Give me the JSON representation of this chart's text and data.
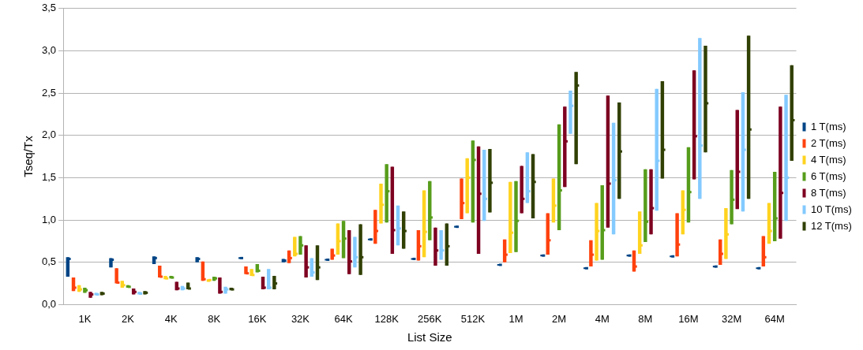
{
  "chart_data": {
    "type": "box",
    "xlabel": "List Size",
    "ylabel": "Tseq/Tx",
    "categories": [
      "1K",
      "2K",
      "4K",
      "8K",
      "16K",
      "32K",
      "64K",
      "128K",
      "256K",
      "512K",
      "1M",
      "2M",
      "4M",
      "8M",
      "16M",
      "32M",
      "64M"
    ],
    "ylim": [
      0,
      3.5
    ],
    "yticks": [
      {
        "value": 0,
        "label": "0,0"
      },
      {
        "value": 0.5,
        "label": "0,5"
      },
      {
        "value": 1,
        "label": "1,0"
      },
      {
        "value": 1.5,
        "label": "1,5"
      },
      {
        "value": 2,
        "label": "2,0"
      },
      {
        "value": 2.5,
        "label": "2,5"
      },
      {
        "value": 3,
        "label": "3,0"
      },
      {
        "value": 3.5,
        "label": "3,5"
      }
    ],
    "grid": "y",
    "legend": "right",
    "series": [
      {
        "name": "1 T(ms)",
        "color": "#004586",
        "boxes": [
          {
            "low": 0.33,
            "q1": 0.33,
            "median": 0.54,
            "q3": 0.56,
            "high": 0.56
          },
          {
            "low": 0.44,
            "q1": 0.44,
            "median": 0.53,
            "q3": 0.55,
            "high": 0.55
          },
          {
            "low": 0.48,
            "q1": 0.48,
            "median": 0.55,
            "q3": 0.57,
            "high": 0.57
          },
          {
            "low": 0.5,
            "q1": 0.5,
            "median": 0.54,
            "q3": 0.56,
            "high": 0.56
          },
          {
            "low": 0.54,
            "q1": 0.54,
            "median": 0.55,
            "q3": 0.56,
            "high": 0.56
          },
          {
            "low": 0.5,
            "q1": 0.5,
            "median": 0.52,
            "q3": 0.54,
            "high": 0.54
          },
          {
            "low": 0.52,
            "q1": 0.52,
            "median": 0.53,
            "q3": 0.54,
            "high": 0.54
          },
          {
            "low": 0.76,
            "q1": 0.76,
            "median": 0.77,
            "q3": 0.78,
            "high": 0.78
          },
          {
            "low": 0.53,
            "q1": 0.53,
            "median": 0.54,
            "q3": 0.55,
            "high": 0.55
          },
          {
            "low": 0.91,
            "q1": 0.91,
            "median": 0.92,
            "q3": 0.93,
            "high": 0.93
          },
          {
            "low": 0.46,
            "q1": 0.46,
            "median": 0.47,
            "q3": 0.48,
            "high": 0.48
          },
          {
            "low": 0.57,
            "q1": 0.57,
            "median": 0.58,
            "q3": 0.59,
            "high": 0.59
          },
          {
            "low": 0.42,
            "q1": 0.42,
            "median": 0.43,
            "q3": 0.44,
            "high": 0.44
          },
          {
            "low": 0.57,
            "q1": 0.57,
            "median": 0.58,
            "q3": 0.59,
            "high": 0.59
          },
          {
            "low": 0.56,
            "q1": 0.56,
            "median": 0.57,
            "q3": 0.58,
            "high": 0.58
          },
          {
            "low": 0.44,
            "q1": 0.44,
            "median": 0.45,
            "q3": 0.46,
            "high": 0.46
          },
          {
            "low": 0.42,
            "q1": 0.42,
            "median": 0.43,
            "q3": 0.44,
            "high": 0.44
          }
        ]
      },
      {
        "name": "2 T(ms)",
        "color": "#ff420e",
        "boxes": [
          {
            "low": 0.16,
            "q1": 0.16,
            "median": 0.2,
            "q3": 0.32,
            "high": 0.32
          },
          {
            "low": 0.25,
            "q1": 0.25,
            "median": 0.26,
            "q3": 0.43,
            "high": 0.43
          },
          {
            "low": 0.32,
            "q1": 0.32,
            "median": 0.33,
            "q3": 0.46,
            "high": 0.46
          },
          {
            "low": 0.28,
            "q1": 0.28,
            "median": 0.3,
            "q3": 0.51,
            "high": 0.51
          },
          {
            "low": 0.36,
            "q1": 0.36,
            "median": 0.37,
            "q3": 0.45,
            "high": 0.45
          },
          {
            "low": 0.49,
            "q1": 0.49,
            "median": 0.55,
            "q3": 0.64,
            "high": 0.64
          },
          {
            "low": 0.53,
            "q1": 0.53,
            "median": 0.58,
            "q3": 0.66,
            "high": 0.66
          },
          {
            "low": 0.72,
            "q1": 0.72,
            "median": 0.87,
            "q3": 1.12,
            "high": 1.12
          },
          {
            "low": 0.52,
            "q1": 0.52,
            "median": 0.69,
            "q3": 0.88,
            "high": 0.88
          },
          {
            "low": 1.01,
            "q1": 1.01,
            "median": 1.2,
            "q3": 1.49,
            "high": 1.49
          },
          {
            "low": 0.5,
            "q1": 0.5,
            "median": 0.59,
            "q3": 0.77,
            "high": 0.77
          },
          {
            "low": 0.59,
            "q1": 0.59,
            "median": 0.76,
            "q3": 1.08,
            "high": 1.08
          },
          {
            "low": 0.45,
            "q1": 0.45,
            "median": 0.59,
            "q3": 0.76,
            "high": 0.76
          },
          {
            "low": 0.39,
            "q1": 0.39,
            "median": 0.45,
            "q3": 0.64,
            "high": 0.64
          },
          {
            "low": 0.57,
            "q1": 0.57,
            "median": 0.71,
            "q3": 1.08,
            "high": 1.08
          },
          {
            "low": 0.47,
            "q1": 0.47,
            "median": 0.6,
            "q3": 0.77,
            "high": 0.77
          },
          {
            "low": 0.45,
            "q1": 0.45,
            "median": 0.56,
            "q3": 0.81,
            "high": 0.81
          }
        ]
      },
      {
        "name": "4 T(ms)",
        "color": "#ffd320",
        "boxes": [
          {
            "low": 0.15,
            "q1": 0.15,
            "median": 0.18,
            "q3": 0.23,
            "high": 0.23
          },
          {
            "low": 0.2,
            "q1": 0.2,
            "median": 0.23,
            "q3": 0.28,
            "high": 0.28
          },
          {
            "low": 0.3,
            "q1": 0.3,
            "median": 0.31,
            "q3": 0.34,
            "high": 0.34
          },
          {
            "low": 0.27,
            "q1": 0.27,
            "median": 0.29,
            "q3": 0.3,
            "high": 0.3
          },
          {
            "low": 0.34,
            "q1": 0.34,
            "median": 0.35,
            "q3": 0.42,
            "high": 0.42
          },
          {
            "low": 0.57,
            "q1": 0.57,
            "median": 0.6,
            "q3": 0.8,
            "high": 0.8
          },
          {
            "low": 0.59,
            "q1": 0.59,
            "median": 0.75,
            "q3": 0.96,
            "high": 0.96
          },
          {
            "low": 0.96,
            "q1": 0.96,
            "median": 1.18,
            "q3": 1.43,
            "high": 1.43
          },
          {
            "low": 0.56,
            "q1": 0.56,
            "median": 0.86,
            "q3": 1.35,
            "high": 1.35
          },
          {
            "low": 1.08,
            "q1": 1.08,
            "median": 1.5,
            "q3": 1.73,
            "high": 1.73
          },
          {
            "low": 0.61,
            "q1": 0.61,
            "median": 0.85,
            "q3": 1.45,
            "high": 1.45
          },
          {
            "low": 0.97,
            "q1": 0.97,
            "median": 1.17,
            "q3": 1.49,
            "high": 1.49
          },
          {
            "low": 0.52,
            "q1": 0.52,
            "median": 0.87,
            "q3": 1.2,
            "high": 1.2
          },
          {
            "low": 0.6,
            "q1": 0.6,
            "median": 0.7,
            "q3": 1.1,
            "high": 1.1
          },
          {
            "low": 0.83,
            "q1": 0.83,
            "median": 1.12,
            "q3": 1.35,
            "high": 1.35
          },
          {
            "low": 0.54,
            "q1": 0.54,
            "median": 0.83,
            "q3": 1.14,
            "high": 1.14
          },
          {
            "low": 0.72,
            "q1": 0.72,
            "median": 0.87,
            "q3": 1.2,
            "high": 1.2
          }
        ]
      },
      {
        "name": "6 T(ms)",
        "color": "#579d1c",
        "boxes": [
          {
            "low": 0.14,
            "q1": 0.14,
            "median": 0.17,
            "q3": 0.2,
            "high": 0.2
          },
          {
            "low": 0.2,
            "q1": 0.2,
            "median": 0.21,
            "q3": 0.23,
            "high": 0.23
          },
          {
            "low": 0.31,
            "q1": 0.31,
            "median": 0.32,
            "q3": 0.34,
            "high": 0.34
          },
          {
            "low": 0.28,
            "q1": 0.28,
            "median": 0.31,
            "q3": 0.33,
            "high": 0.33
          },
          {
            "low": 0.38,
            "q1": 0.38,
            "median": 0.4,
            "q3": 0.48,
            "high": 0.48
          },
          {
            "low": 0.59,
            "q1": 0.59,
            "median": 0.7,
            "q3": 0.81,
            "high": 0.81
          },
          {
            "low": 0.55,
            "q1": 0.55,
            "median": 0.78,
            "q3": 0.99,
            "high": 0.99
          },
          {
            "low": 0.97,
            "q1": 0.97,
            "median": 1.34,
            "q3": 1.66,
            "high": 1.66
          },
          {
            "low": 0.76,
            "q1": 0.76,
            "median": 1.03,
            "q3": 1.46,
            "high": 1.46
          },
          {
            "low": 0.97,
            "q1": 0.97,
            "median": 1.71,
            "q3": 1.94,
            "high": 1.94
          },
          {
            "low": 0.62,
            "q1": 0.62,
            "median": 0.99,
            "q3": 1.46,
            "high": 1.46
          },
          {
            "low": 0.88,
            "q1": 0.88,
            "median": 1.35,
            "q3": 2.13,
            "high": 2.13
          },
          {
            "low": 0.53,
            "q1": 0.53,
            "median": 0.88,
            "q3": 1.41,
            "high": 1.41
          },
          {
            "low": 0.74,
            "q1": 0.74,
            "median": 0.98,
            "q3": 1.6,
            "high": 1.6
          },
          {
            "low": 0.97,
            "q1": 0.97,
            "median": 1.33,
            "q3": 1.86,
            "high": 1.86
          },
          {
            "low": 0.95,
            "q1": 0.95,
            "median": 1.24,
            "q3": 1.59,
            "high": 1.59
          },
          {
            "low": 0.75,
            "q1": 0.75,
            "median": 1.02,
            "q3": 1.57,
            "high": 1.57
          }
        ]
      },
      {
        "name": "8 T(ms)",
        "color": "#7e0021",
        "boxes": [
          {
            "low": 0.08,
            "q1": 0.08,
            "median": 0.12,
            "q3": 0.15,
            "high": 0.15
          },
          {
            "low": 0.12,
            "q1": 0.12,
            "median": 0.15,
            "q3": 0.19,
            "high": 0.19
          },
          {
            "low": 0.17,
            "q1": 0.17,
            "median": 0.19,
            "q3": 0.27,
            "high": 0.27
          },
          {
            "low": 0.13,
            "q1": 0.13,
            "median": 0.15,
            "q3": 0.32,
            "high": 0.32
          },
          {
            "low": 0.18,
            "q1": 0.18,
            "median": 0.2,
            "q3": 0.33,
            "high": 0.33
          },
          {
            "low": 0.32,
            "q1": 0.32,
            "median": 0.44,
            "q3": 0.7,
            "high": 0.7
          },
          {
            "low": 0.36,
            "q1": 0.36,
            "median": 0.51,
            "q3": 0.88,
            "high": 0.88
          },
          {
            "low": 0.6,
            "q1": 0.6,
            "median": 0.88,
            "q3": 1.63,
            "high": 1.63
          },
          {
            "low": 0.46,
            "q1": 0.46,
            "median": 0.64,
            "q3": 0.91,
            "high": 0.91
          },
          {
            "low": 0.6,
            "q1": 0.6,
            "median": 1.31,
            "q3": 1.87,
            "high": 1.87
          },
          {
            "low": 1.08,
            "q1": 1.08,
            "median": 1.25,
            "q3": 1.64,
            "high": 1.64
          },
          {
            "low": 1.39,
            "q1": 1.39,
            "median": 1.93,
            "q3": 2.34,
            "high": 2.34
          },
          {
            "low": 0.91,
            "q1": 0.91,
            "median": 1.43,
            "q3": 2.47,
            "high": 2.47
          },
          {
            "low": 0.83,
            "q1": 0.83,
            "median": 1.14,
            "q3": 1.6,
            "high": 1.6
          },
          {
            "low": 1.48,
            "q1": 1.48,
            "median": 1.99,
            "q3": 2.77,
            "high": 2.77
          },
          {
            "low": 1.13,
            "q1": 1.13,
            "median": 1.57,
            "q3": 2.3,
            "high": 2.3
          },
          {
            "low": 0.78,
            "q1": 0.78,
            "median": 1.32,
            "q3": 2.34,
            "high": 2.34
          }
        ]
      },
      {
        "name": "10 T(ms)",
        "color": "#83caff",
        "boxes": [
          {
            "low": 0.11,
            "q1": 0.11,
            "median": 0.12,
            "q3": 0.14,
            "high": 0.14
          },
          {
            "low": 0.12,
            "q1": 0.12,
            "median": 0.13,
            "q3": 0.15,
            "high": 0.15
          },
          {
            "low": 0.17,
            "q1": 0.17,
            "median": 0.19,
            "q3": 0.22,
            "high": 0.22
          },
          {
            "low": 0.13,
            "q1": 0.13,
            "median": 0.18,
            "q3": 0.21,
            "high": 0.21
          },
          {
            "low": 0.18,
            "q1": 0.18,
            "median": 0.2,
            "q3": 0.42,
            "high": 0.42
          },
          {
            "low": 0.33,
            "q1": 0.33,
            "median": 0.38,
            "q3": 0.55,
            "high": 0.55
          },
          {
            "low": 0.44,
            "q1": 0.44,
            "median": 0.56,
            "q3": 0.8,
            "high": 0.8
          },
          {
            "low": 0.7,
            "q1": 0.7,
            "median": 0.9,
            "q3": 1.17,
            "high": 1.17
          },
          {
            "low": 0.53,
            "q1": 0.53,
            "median": 0.64,
            "q3": 0.88,
            "high": 0.88
          },
          {
            "low": 0.99,
            "q1": 0.99,
            "median": 1.25,
            "q3": 1.83,
            "high": 1.83
          },
          {
            "low": 1.2,
            "q1": 1.2,
            "median": 1.34,
            "q3": 1.8,
            "high": 1.8
          },
          {
            "low": 2.02,
            "q1": 2.02,
            "median": 2.35,
            "q3": 2.53,
            "high": 2.53
          },
          {
            "low": 0.83,
            "q1": 0.83,
            "median": 1.47,
            "q3": 2.15,
            "high": 2.15
          },
          {
            "low": 1.11,
            "q1": 1.11,
            "median": 1.7,
            "q3": 2.55,
            "high": 2.55
          },
          {
            "low": 1.25,
            "q1": 1.25,
            "median": 1.88,
            "q3": 3.15,
            "high": 3.15
          },
          {
            "low": 1.1,
            "q1": 1.1,
            "median": 1.83,
            "q3": 2.51,
            "high": 2.51
          },
          {
            "low": 0.99,
            "q1": 0.99,
            "median": 1.5,
            "q3": 2.48,
            "high": 2.48
          }
        ]
      },
      {
        "name": "12 T(ms)",
        "color": "#314004",
        "boxes": [
          {
            "low": 0.11,
            "q1": 0.11,
            "median": 0.13,
            "q3": 0.15,
            "high": 0.15
          },
          {
            "low": 0.12,
            "q1": 0.12,
            "median": 0.14,
            "q3": 0.16,
            "high": 0.16
          },
          {
            "low": 0.18,
            "q1": 0.18,
            "median": 0.19,
            "q3": 0.26,
            "high": 0.26
          },
          {
            "low": 0.17,
            "q1": 0.17,
            "median": 0.18,
            "q3": 0.2,
            "high": 0.2
          },
          {
            "low": 0.18,
            "q1": 0.18,
            "median": 0.25,
            "q3": 0.34,
            "high": 0.34
          },
          {
            "low": 0.29,
            "q1": 0.29,
            "median": 0.44,
            "q3": 0.7,
            "high": 0.7
          },
          {
            "low": 0.35,
            "q1": 0.35,
            "median": 0.56,
            "q3": 0.95,
            "high": 0.95
          },
          {
            "low": 0.66,
            "q1": 0.66,
            "median": 0.87,
            "q3": 1.1,
            "high": 1.1
          },
          {
            "low": 0.46,
            "q1": 0.46,
            "median": 0.69,
            "q3": 0.96,
            "high": 0.96
          },
          {
            "low": 1.09,
            "q1": 1.09,
            "median": 1.44,
            "q3": 1.84,
            "high": 1.84
          },
          {
            "low": 1.02,
            "q1": 1.02,
            "median": 1.45,
            "q3": 1.78,
            "high": 1.78
          },
          {
            "low": 1.66,
            "q1": 1.66,
            "median": 2.59,
            "q3": 2.75,
            "high": 2.75
          },
          {
            "low": 1.25,
            "q1": 1.25,
            "median": 1.81,
            "q3": 2.39,
            "high": 2.39
          },
          {
            "low": 1.49,
            "q1": 1.49,
            "median": 1.83,
            "q3": 2.64,
            "high": 2.64
          },
          {
            "low": 1.8,
            "q1": 1.8,
            "median": 2.38,
            "q3": 3.06,
            "high": 3.06
          },
          {
            "low": 1.25,
            "q1": 1.25,
            "median": 2.07,
            "q3": 3.18,
            "high": 3.18
          },
          {
            "low": 1.7,
            "q1": 1.7,
            "median": 2.18,
            "q3": 2.83,
            "high": 2.83
          }
        ]
      }
    ]
  }
}
